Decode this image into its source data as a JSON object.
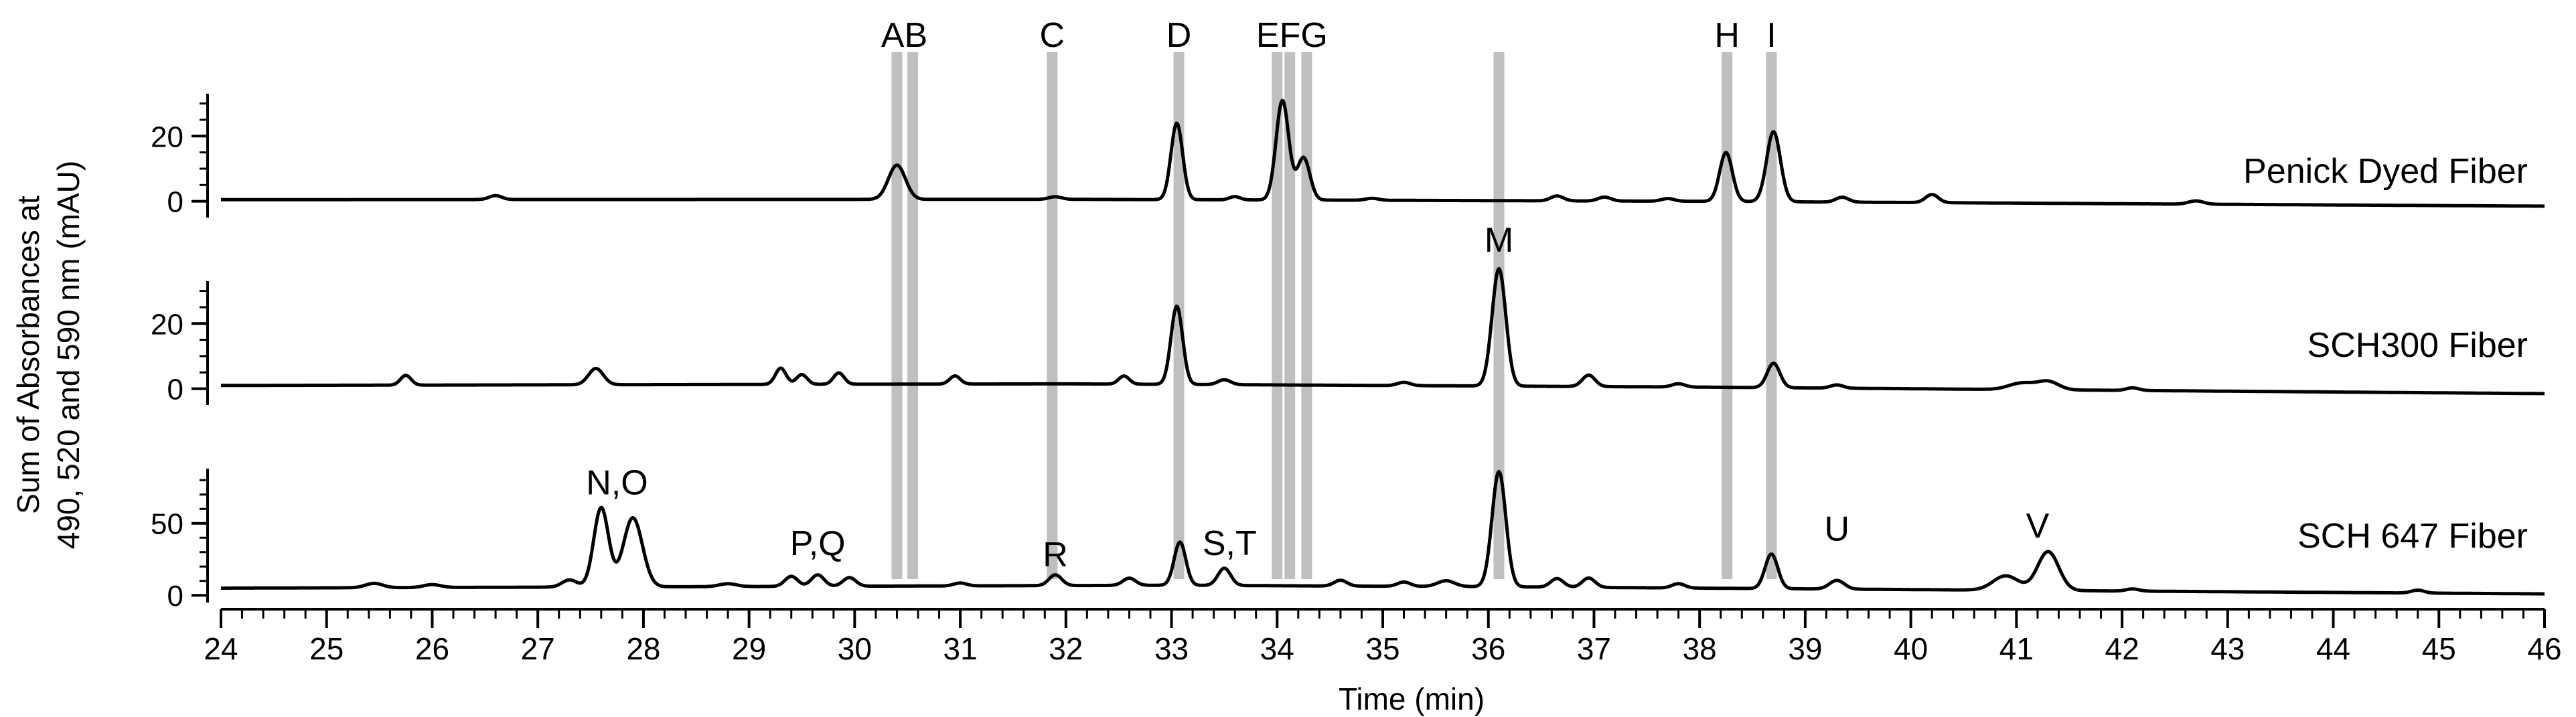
{
  "chart_data": {
    "type": "line",
    "xlabel": "Time (min)",
    "ylabel_line1": "Sum of Absorbances at",
    "ylabel_line2": "490, 520 and 590 nm (mAU)",
    "xlim": [
      24,
      46
    ],
    "x_ticks": [
      24,
      25,
      26,
      27,
      28,
      29,
      30,
      31,
      32,
      33,
      34,
      35,
      36,
      37,
      38,
      39,
      40,
      41,
      42,
      43,
      44,
      45,
      46
    ],
    "colors": {
      "trace": "#000000",
      "highlight": "#bfbfbf"
    },
    "highlight_lines": [
      {
        "label": "A",
        "x": 30.4
      },
      {
        "label": "B",
        "x": 30.55
      },
      {
        "label": "C",
        "x": 31.87
      },
      {
        "label": "D",
        "x": 33.07
      },
      {
        "label": "E",
        "x": 34.0
      },
      {
        "label": "F",
        "x": 34.12
      },
      {
        "label": "G",
        "x": 34.28
      },
      {
        "label": "H",
        "x": 38.26
      },
      {
        "label": "I",
        "x": 38.68
      },
      {
        "label": "M",
        "x": 36.1
      }
    ],
    "top_labels": [
      {
        "text": "AB",
        "x": 30.47
      },
      {
        "text": "C",
        "x": 31.87
      },
      {
        "text": "D",
        "x": 33.07
      },
      {
        "text": "EFG",
        "x": 34.14
      },
      {
        "text": "H",
        "x": 38.26
      },
      {
        "text": "I",
        "x": 38.68
      }
    ],
    "panels": [
      {
        "name": "Penick Dyed Fiber",
        "ylim": [
          -5,
          33
        ],
        "y_ticks": [
          0,
          20
        ],
        "baseline": [
          [
            24,
            0.5
          ],
          [
            32,
            0.6
          ],
          [
            38,
            0.0
          ],
          [
            46,
            -1.5
          ]
        ],
        "peaks": [
          [
            26.6,
            1.2,
            0.06
          ],
          [
            30.4,
            10.5,
            0.08
          ],
          [
            31.9,
            0.8,
            0.06
          ],
          [
            33.05,
            23.5,
            0.055
          ],
          [
            33.6,
            1.0,
            0.05
          ],
          [
            34.05,
            30.5,
            0.06
          ],
          [
            34.25,
            13.0,
            0.06
          ],
          [
            34.9,
            0.6,
            0.06
          ],
          [
            36.65,
            1.5,
            0.06
          ],
          [
            37.1,
            1.2,
            0.06
          ],
          [
            37.7,
            0.8,
            0.06
          ],
          [
            38.25,
            15.0,
            0.06
          ],
          [
            38.7,
            21.5,
            0.065
          ],
          [
            39.35,
            1.5,
            0.06
          ],
          [
            40.2,
            2.5,
            0.06
          ],
          [
            42.7,
            1.0,
            0.07
          ]
        ],
        "peak_labels": []
      },
      {
        "name": "SCH300 Fiber",
        "ylim": [
          -5,
          33
        ],
        "y_ticks": [
          0,
          20
        ],
        "baseline": [
          [
            24,
            1.0
          ],
          [
            32,
            1.5
          ],
          [
            38,
            0.5
          ],
          [
            46,
            -1.5
          ]
        ],
        "peaks": [
          [
            25.75,
            3.0,
            0.05
          ],
          [
            27.55,
            5.0,
            0.07
          ],
          [
            29.3,
            5.0,
            0.05
          ],
          [
            29.5,
            3.0,
            0.05
          ],
          [
            29.85,
            3.5,
            0.05
          ],
          [
            30.95,
            2.5,
            0.05
          ],
          [
            32.55,
            2.5,
            0.05
          ],
          [
            33.05,
            24.0,
            0.055
          ],
          [
            33.5,
            1.5,
            0.06
          ],
          [
            35.2,
            1.0,
            0.06
          ],
          [
            36.1,
            36.0,
            0.065
          ],
          [
            36.95,
            3.5,
            0.06
          ],
          [
            37.8,
            1.0,
            0.06
          ],
          [
            38.7,
            7.5,
            0.06
          ],
          [
            39.3,
            1.0,
            0.06
          ],
          [
            41.05,
            2.0,
            0.12
          ],
          [
            41.3,
            2.5,
            0.1
          ],
          [
            42.1,
            0.8,
            0.06
          ]
        ],
        "peak_labels": [
          {
            "text": "M",
            "x": 36.1,
            "y": 42
          }
        ]
      },
      {
        "name": "SCH 647 Fiber",
        "ylim": [
          -5,
          88
        ],
        "y_ticks": [
          0,
          50
        ],
        "baseline": [
          [
            24,
            5.0
          ],
          [
            33,
            7.0
          ],
          [
            36,
            6.0
          ],
          [
            46,
            1.0
          ]
        ],
        "peaks": [
          [
            25.45,
            3.0,
            0.08
          ],
          [
            26.0,
            2.0,
            0.08
          ],
          [
            27.3,
            5.0,
            0.07
          ],
          [
            27.6,
            55.0,
            0.07
          ],
          [
            27.9,
            48.0,
            0.09
          ],
          [
            28.8,
            2.0,
            0.08
          ],
          [
            29.4,
            7.0,
            0.06
          ],
          [
            29.65,
            8.0,
            0.06
          ],
          [
            29.95,
            6.0,
            0.06
          ],
          [
            31.0,
            2.0,
            0.06
          ],
          [
            31.9,
            7.5,
            0.06
          ],
          [
            32.6,
            5.0,
            0.06
          ],
          [
            33.08,
            30.0,
            0.055
          ],
          [
            33.5,
            12.0,
            0.06
          ],
          [
            34.6,
            4.0,
            0.06
          ],
          [
            35.2,
            3.0,
            0.06
          ],
          [
            35.6,
            4.0,
            0.08
          ],
          [
            36.1,
            80.0,
            0.065
          ],
          [
            36.65,
            6.0,
            0.06
          ],
          [
            36.95,
            6.5,
            0.06
          ],
          [
            37.8,
            3.0,
            0.06
          ],
          [
            38.68,
            24.0,
            0.06
          ],
          [
            39.3,
            6.0,
            0.07
          ],
          [
            40.9,
            10.0,
            0.12
          ],
          [
            41.3,
            27.0,
            0.1
          ],
          [
            42.1,
            1.5,
            0.06
          ],
          [
            44.8,
            2.0,
            0.06
          ]
        ],
        "peak_labels": [
          {
            "text": "N,O",
            "x": 27.75,
            "y": 70
          },
          {
            "text": "P,Q",
            "x": 29.65,
            "y": 28
          },
          {
            "text": "R",
            "x": 31.9,
            "y": 20
          },
          {
            "text": "S,T",
            "x": 33.55,
            "y": 28
          },
          {
            "text": "U",
            "x": 39.3,
            "y": 38
          },
          {
            "text": "V",
            "x": 41.2,
            "y": 40
          }
        ]
      }
    ]
  }
}
